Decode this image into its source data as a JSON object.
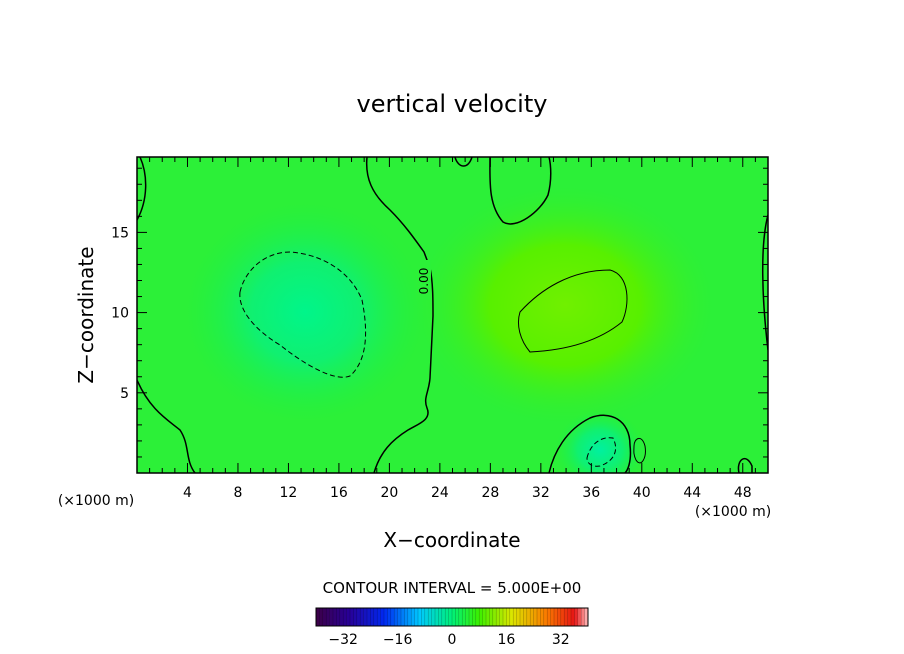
{
  "chart_data": {
    "type": "heatmap",
    "title": "vertical velocity",
    "xlabel": "X−coordinate",
    "ylabel": "Z−coordinate",
    "x_ticks": [
      4,
      8,
      12,
      16,
      20,
      24,
      28,
      32,
      36,
      40,
      44,
      48
    ],
    "y_ticks": [
      5,
      10,
      15
    ],
    "x_unit_left": "(×1000 m)",
    "x_unit_right": "(×1000 m)",
    "xlim": [
      0,
      50
    ],
    "ylim": [
      0,
      19.7
    ],
    "contour_interval_text": "CONTOUR INTERVAL = 5.000E+00",
    "contour_label": "0.00",
    "colorbar": {
      "ticks": [
        -32,
        -16,
        0,
        16,
        32
      ],
      "tick_labels": [
        "−32",
        "−16",
        "0",
        "16",
        "32"
      ],
      "range": [
        -40,
        40
      ],
      "colormap": "rainbow (purple-blue-cyan-green-yellow-red)"
    },
    "features": [
      {
        "kind": "minimum",
        "center_x": 13,
        "center_z": 10,
        "approx_value": -7
      },
      {
        "kind": "maximum",
        "center_x": 33,
        "center_z": 10.5,
        "approx_value": 6
      },
      {
        "kind": "minimum",
        "center_x": 36.5,
        "center_z": 1.5,
        "approx_value": -8
      }
    ]
  }
}
